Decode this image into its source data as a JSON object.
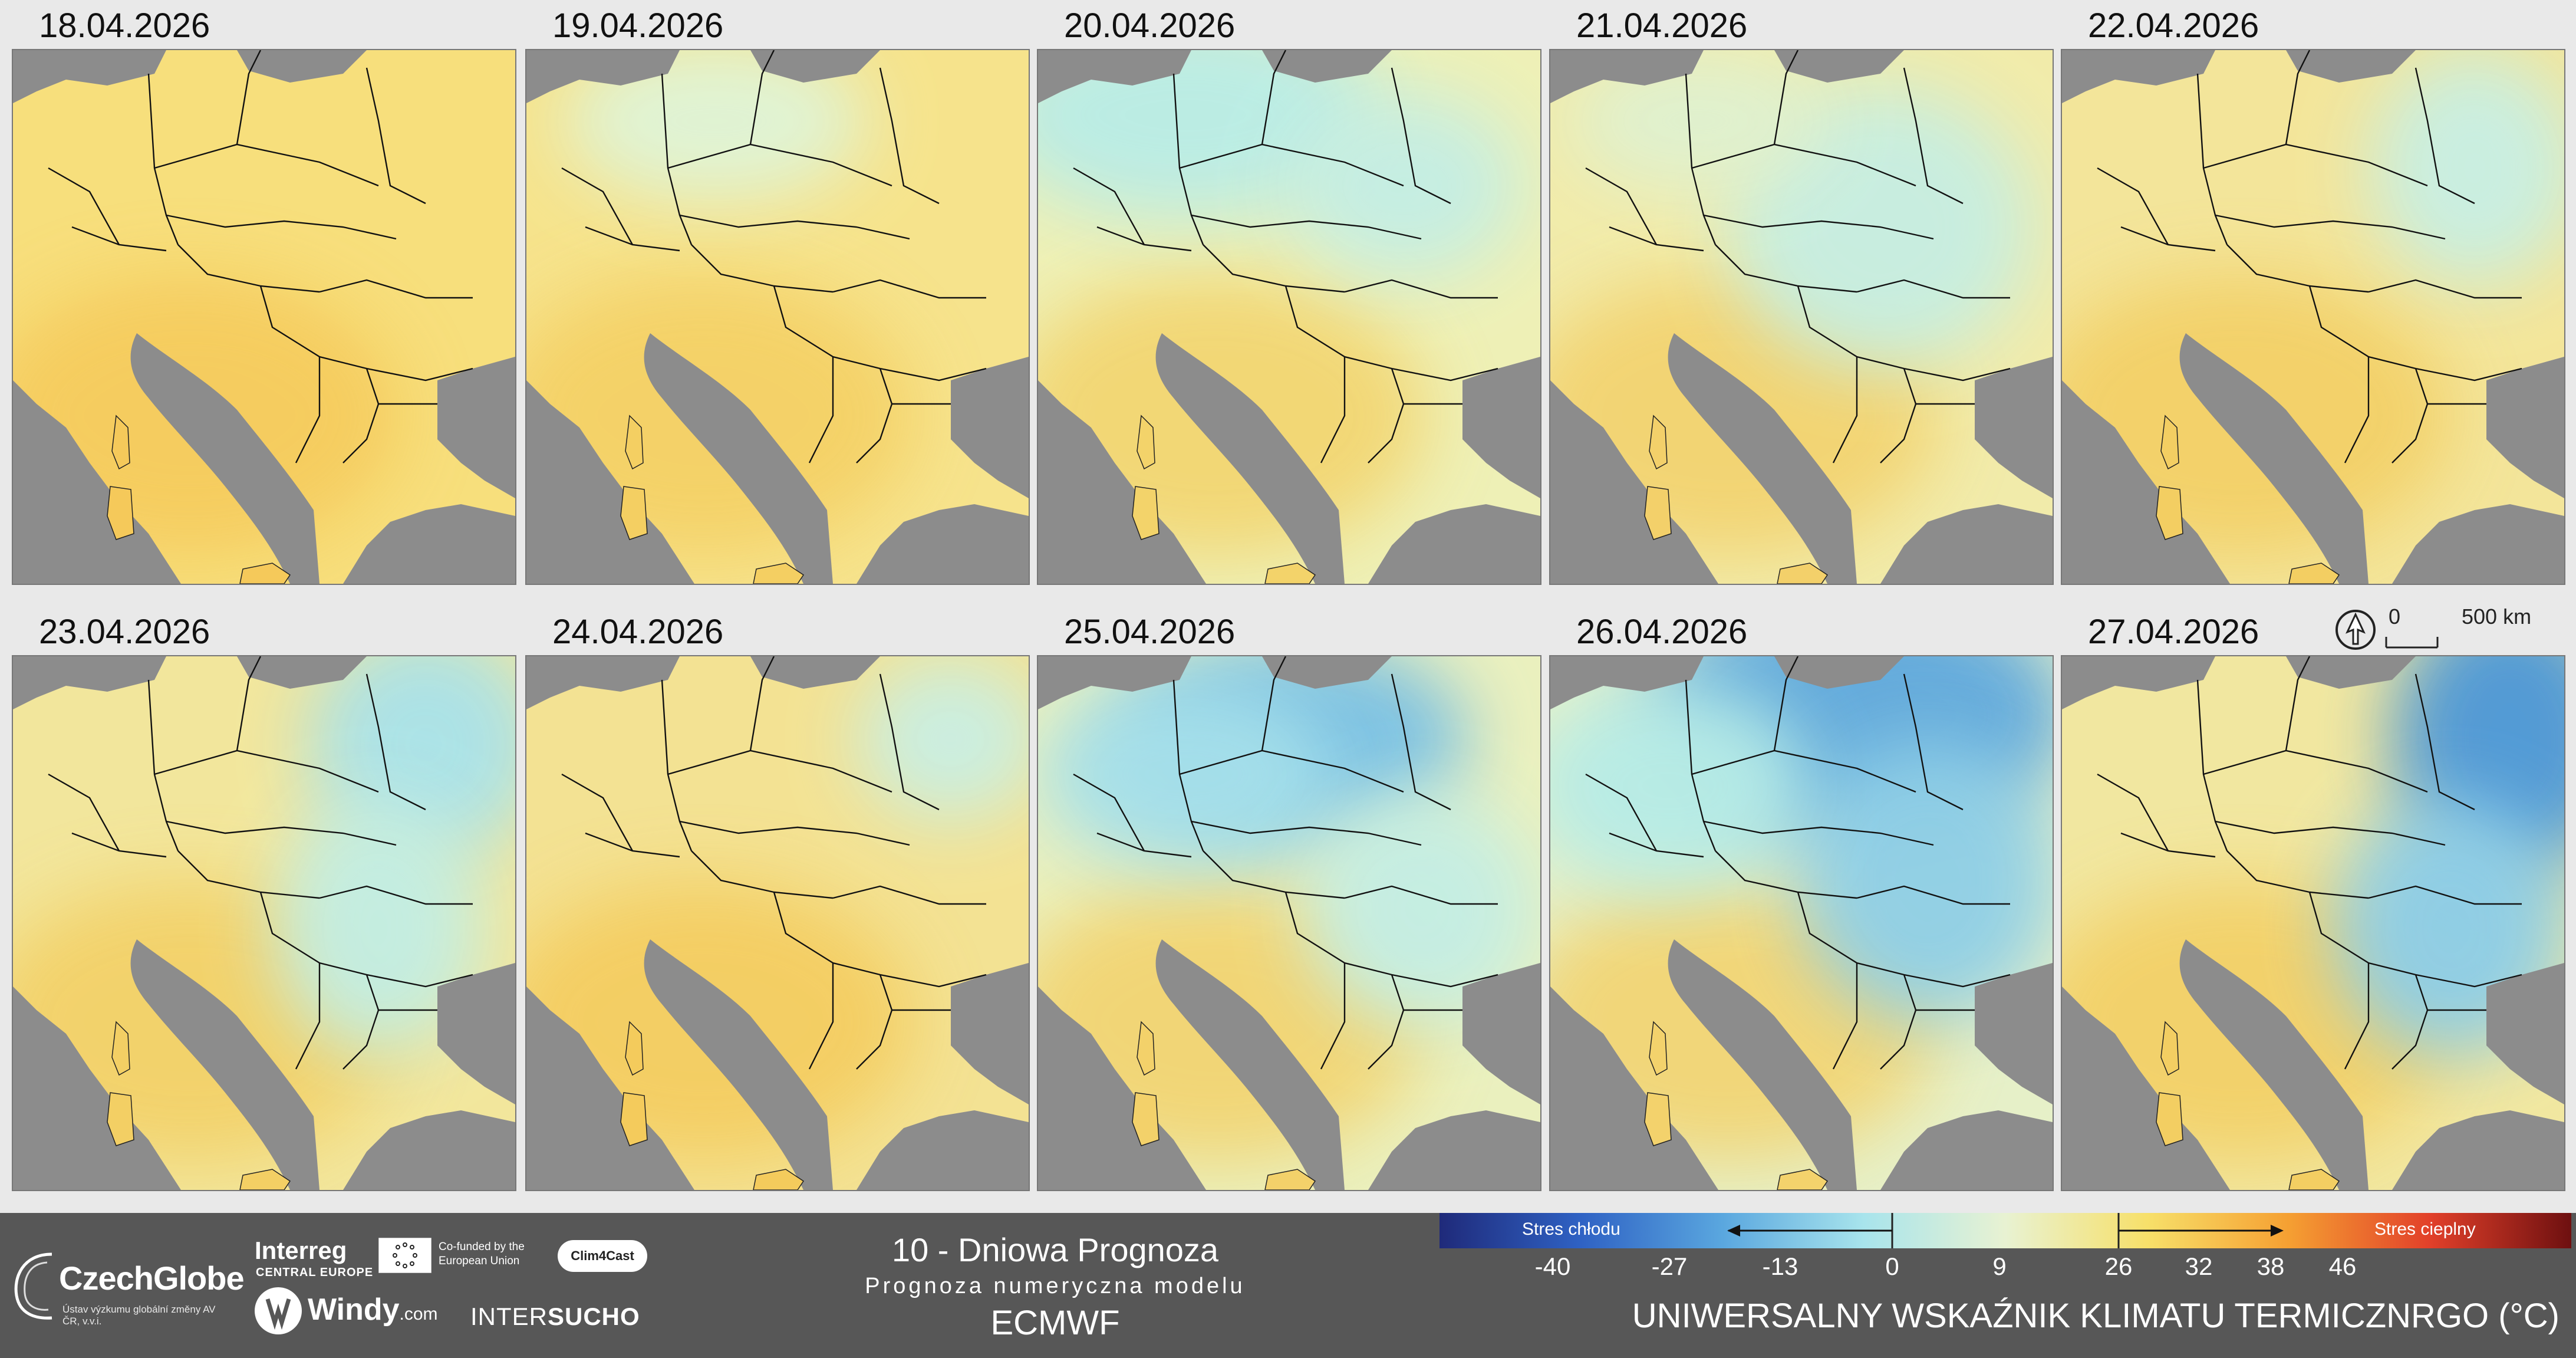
{
  "panels": [
    {
      "date": "18.04.2026",
      "pattern": 0
    },
    {
      "date": "19.04.2026",
      "pattern": 1
    },
    {
      "date": "20.04.2026",
      "pattern": 2
    },
    {
      "date": "21.04.2026",
      "pattern": 3
    },
    {
      "date": "22.04.2026",
      "pattern": 4
    },
    {
      "date": "23.04.2026",
      "pattern": 5
    },
    {
      "date": "24.04.2026",
      "pattern": 6
    },
    {
      "date": "25.04.2026",
      "pattern": 7
    },
    {
      "date": "26.04.2026",
      "pattern": 8
    },
    {
      "date": "27.04.2026",
      "pattern": 9
    }
  ],
  "scale_bar": {
    "start": "0",
    "end": "500 km"
  },
  "title": {
    "line1": "10 - Dniowa Prognoza",
    "line2": "Prognoza numeryczna modelu",
    "line3": "ECMWF",
    "main": "UNIWERSALNY WSKAŹNIK KLIMATU TERMICZNRGO (°C)"
  },
  "legend": {
    "cold_label": "Stres chłodu",
    "heat_label": "Stres cieplny",
    "ticks": [
      "-40",
      "-27",
      "-13",
      "0",
      "9",
      "26",
      "32",
      "38",
      "46"
    ],
    "colors": [
      "#1f2a7a",
      "#2f62c4",
      "#5aa7df",
      "#a8e4ec",
      "#e8f2d2",
      "#f7e06a",
      "#f5a032",
      "#e2402a",
      "#6e1010"
    ]
  },
  "logos": {
    "czechglobe_name": "CzechGlobe",
    "czechglobe_sub": "Ústav výzkumu globální změny AV ČR, v.v.i.",
    "interreg": "Interreg",
    "interreg_sub": "CENTRAL EUROPE",
    "eu_text": "Co-funded by the European Union",
    "clim4cast": "Clim4Cast",
    "windy": "Windy",
    "windy_com": ".com",
    "intersucho_a": "INTER",
    "intersucho_b": "SUCHO"
  }
}
